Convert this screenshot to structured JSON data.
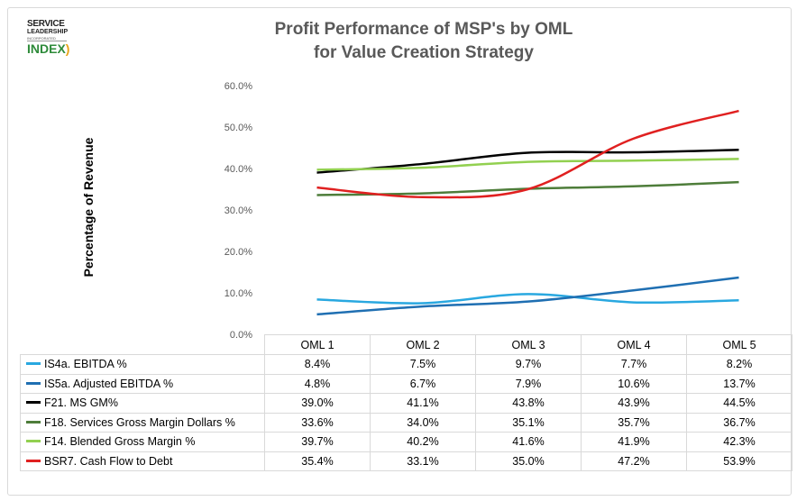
{
  "logo": {
    "line1": "SERVICE",
    "line2": "LEADERSHIP",
    "line3": "INCORPORATED",
    "line4": "INDEX"
  },
  "chart_data": {
    "type": "line",
    "title": "Profit Performance of MSP's by OML for Value Creation Strategy",
    "title_lines": [
      "Profit Performance of MSP's by OML",
      "for Value Creation Strategy"
    ],
    "ylabel": "Percentage of Revenue",
    "xlabel": "",
    "categories": [
      "OML 1",
      "OML 2",
      "OML 3",
      "OML 4",
      "OML 5"
    ],
    "ylim": [
      0,
      60
    ],
    "yticks": [
      "0.0%",
      "10.0%",
      "20.0%",
      "30.0%",
      "40.0%",
      "50.0%",
      "60.0%"
    ],
    "grid": false,
    "legend": "data-table-bottom",
    "series": [
      {
        "name": "IS4a. EBITDA %",
        "color": "#29a8e0",
        "values": [
          8.4,
          7.5,
          9.7,
          7.7,
          8.2
        ],
        "labels": [
          "8.4%",
          "7.5%",
          "9.7%",
          "7.7%",
          "8.2%"
        ]
      },
      {
        "name": "IS5a. Adjusted EBITDA %",
        "color": "#1f6fb2",
        "values": [
          4.8,
          6.7,
          7.9,
          10.6,
          13.7
        ],
        "labels": [
          "4.8%",
          "6.7%",
          "7.9%",
          "10.6%",
          "13.7%"
        ]
      },
      {
        "name": "F21. MS GM%",
        "color": "#000000",
        "values": [
          39.0,
          41.1,
          43.8,
          43.9,
          44.5
        ],
        "labels": [
          "39.0%",
          "41.1%",
          "43.8%",
          "43.9%",
          "44.5%"
        ]
      },
      {
        "name": "F18.  Services Gross Margin Dollars %",
        "color": "#4e7d3a",
        "values": [
          33.6,
          34.0,
          35.1,
          35.7,
          36.7
        ],
        "labels": [
          "33.6%",
          "34.0%",
          "35.1%",
          "35.7%",
          "36.7%"
        ]
      },
      {
        "name": "F14. Blended Gross Margin %",
        "color": "#92d050",
        "values": [
          39.7,
          40.2,
          41.6,
          41.9,
          42.3
        ],
        "labels": [
          "39.7%",
          "40.2%",
          "41.6%",
          "41.9%",
          "42.3%"
        ]
      },
      {
        "name": "BSR7. Cash Flow to Debt",
        "color": "#e02020",
        "values": [
          35.4,
          33.1,
          35.0,
          47.2,
          53.9
        ],
        "labels": [
          "35.4%",
          "33.1%",
          "35.0%",
          "47.2%",
          "53.9%"
        ]
      }
    ]
  }
}
